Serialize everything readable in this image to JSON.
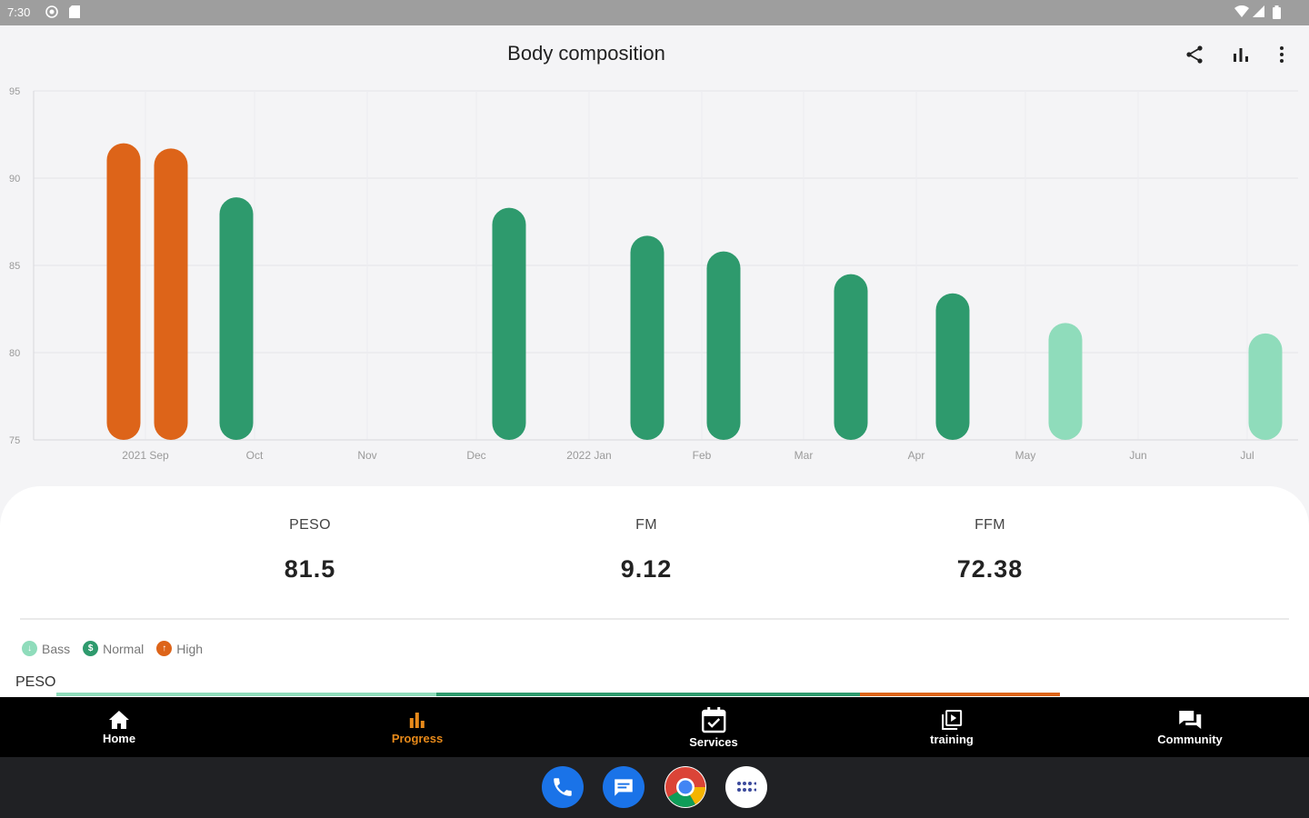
{
  "status_bar": {
    "time": "7:30"
  },
  "app_bar": {
    "title": "Body composition",
    "actions": [
      "share-icon",
      "bar-chart-icon",
      "more-vert-icon"
    ]
  },
  "chart_data": {
    "type": "bar",
    "ylim": [
      75,
      95
    ],
    "yticks": [
      "95",
      "90",
      "85",
      "80",
      "75"
    ],
    "xticks": [
      "2021 Sep",
      "Oct",
      "Nov",
      "Dec",
      "2022 Jan",
      "Feb",
      "Mar",
      "Apr",
      "May",
      "Jun",
      "Jul"
    ],
    "grid": true,
    "series": [
      {
        "values": [
          {
            "date": "2021-08-26",
            "value": 92.0,
            "status": "High"
          },
          {
            "date": "2021-09-08",
            "value": 91.7,
            "status": "High"
          },
          {
            "date": "2021-09-26",
            "value": 88.9,
            "status": "Normal"
          },
          {
            "date": "2021-12-10",
            "value": 88.3,
            "status": "Normal"
          },
          {
            "date": "2022-01-17",
            "value": 86.7,
            "status": "Normal"
          },
          {
            "date": "2022-02-07",
            "value": 85.8,
            "status": "Normal"
          },
          {
            "date": "2022-03-14",
            "value": 84.5,
            "status": "Normal"
          },
          {
            "date": "2022-04-11",
            "value": 83.4,
            "status": "Normal"
          },
          {
            "date": "2022-05-12",
            "value": 81.7,
            "status": "Bass"
          },
          {
            "date": "2022-07-06",
            "value": 81.1,
            "status": "Bass"
          }
        ]
      }
    ],
    "colors": {
      "High": "#dd6419",
      "Normal": "#2e9a6d",
      "Bass": "#8fdcbb"
    }
  },
  "summary": {
    "metrics": [
      {
        "label": "PESO",
        "value": "81.5"
      },
      {
        "label": "FM",
        "value": "9.12"
      },
      {
        "label": "FFM",
        "value": "72.38"
      }
    ],
    "legend": [
      {
        "label": "Bass",
        "color": "#8fdcbb",
        "symbol": "↓"
      },
      {
        "label": "Normal",
        "color": "#2e9a6d",
        "symbol": "$"
      },
      {
        "label": "High",
        "color": "#dd6419",
        "symbol": "↑"
      }
    ],
    "section_label": "PESO"
  },
  "bottom_nav": {
    "items": [
      {
        "label": "Home",
        "icon": "home-icon",
        "active": false
      },
      {
        "label": "Progress",
        "icon": "bar-chart-icon",
        "active": true
      },
      {
        "label": "Services",
        "icon": "calendar-check-icon",
        "active": false
      },
      {
        "label": "training",
        "icon": "video-library-icon",
        "active": false
      },
      {
        "label": "Community",
        "icon": "chat-icon",
        "active": false
      }
    ]
  },
  "dock": [
    "phone-icon",
    "messages-icon",
    "chrome-icon",
    "app-drawer-icon"
  ]
}
